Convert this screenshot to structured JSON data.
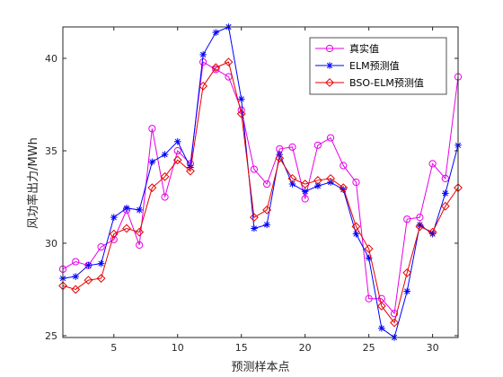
{
  "chart_data": {
    "type": "line",
    "title": "",
    "xlabel": "预测样本点",
    "ylabel": "风功率出力/MWh",
    "xlim": [
      1,
      32
    ],
    "ylim": [
      24.9,
      41.7
    ],
    "xticks": [
      5,
      10,
      15,
      20,
      25,
      30
    ],
    "yticks": [
      25,
      30,
      35,
      40
    ],
    "grid": false,
    "legend_position": "top-right",
    "x": [
      1,
      2,
      3,
      4,
      5,
      6,
      7,
      8,
      9,
      10,
      11,
      12,
      13,
      14,
      15,
      16,
      17,
      18,
      19,
      20,
      21,
      22,
      23,
      24,
      25,
      26,
      27,
      28,
      29,
      30,
      31,
      32
    ],
    "series": [
      {
        "name": "真实值",
        "color": "#e600e6",
        "marker": "circle",
        "values": [
          28.6,
          29.0,
          28.8,
          29.8,
          30.2,
          31.8,
          29.9,
          36.2,
          32.5,
          35.0,
          34.3,
          39.8,
          39.4,
          39.0,
          37.2,
          34.0,
          33.2,
          35.1,
          35.2,
          32.4,
          35.3,
          35.7,
          34.2,
          33.3,
          27.0,
          27.0,
          26.2,
          31.3,
          31.4,
          34.3,
          33.5,
          39.0
        ]
      },
      {
        "name": "ELM预测值",
        "color": "#0000ff",
        "marker": "asterisk",
        "values": [
          28.1,
          28.2,
          28.8,
          28.9,
          31.4,
          31.9,
          31.8,
          34.4,
          34.8,
          35.5,
          34.1,
          40.2,
          41.4,
          41.7,
          37.8,
          30.8,
          31.0,
          34.8,
          33.2,
          32.8,
          33.1,
          33.3,
          32.9,
          30.5,
          29.2,
          25.4,
          24.9,
          27.4,
          31.0,
          30.5,
          32.7,
          35.3
        ]
      },
      {
        "name": "BSO-ELM预测值",
        "color": "#e60000",
        "marker": "diamond",
        "values": [
          27.7,
          27.5,
          28.0,
          28.1,
          30.5,
          30.8,
          30.6,
          33.0,
          33.6,
          34.5,
          33.9,
          38.5,
          39.5,
          39.8,
          37.0,
          31.4,
          31.8,
          34.6,
          33.5,
          33.2,
          33.4,
          33.5,
          33.0,
          30.9,
          29.7,
          26.6,
          25.7,
          28.4,
          30.9,
          30.6,
          32.0,
          33.0
        ]
      }
    ]
  }
}
